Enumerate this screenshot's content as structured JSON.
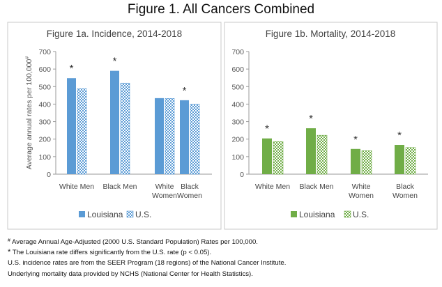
{
  "figure_title": "Figure 1.  All Cancers Combined",
  "chart_data": [
    {
      "type": "bar",
      "title": "Figure 1a. Incidence, 2014-2018",
      "ylabel": "Average annual rates per 100,000#",
      "ylim": [
        0,
        700
      ],
      "yticks": [
        0,
        100,
        200,
        300,
        400,
        500,
        600,
        700
      ],
      "categories": [
        "White Men",
        "Black Men",
        "White Women",
        "Black Women"
      ],
      "category_lines": [
        [
          "White Men"
        ],
        [
          "Black Men"
        ],
        [
          "White",
          "Women"
        ],
        [
          "Black",
          "Women"
        ]
      ],
      "series": [
        {
          "name": "Louisiana",
          "values": [
            548,
            590,
            434,
            422
          ],
          "color": "#5b9bd5",
          "pattern": "solid"
        },
        {
          "name": "U.S.",
          "values": [
            488,
            520,
            432,
            400
          ],
          "color": "#5b9bd5",
          "pattern": "checker"
        }
      ],
      "significant": [
        true,
        true,
        false,
        true
      ],
      "significance_marker": "*",
      "grid": false,
      "legend": "bottom"
    },
    {
      "type": "bar",
      "title": "Figure 1b. Mortality, 2014-2018",
      "ylabel": "",
      "ylim": [
        0,
        700
      ],
      "yticks": [
        0,
        100,
        200,
        300,
        400,
        500,
        600,
        700
      ],
      "categories": [
        "White Men",
        "Black Men",
        "White Women",
        "Black Women"
      ],
      "category_lines": [
        [
          "White Men"
        ],
        [
          "Black Men"
        ],
        [
          "White",
          "Women"
        ],
        [
          "Black",
          "Women"
        ]
      ],
      "series": [
        {
          "name": "Louisiana",
          "values": [
            204,
            262,
            144,
            167
          ],
          "color": "#70ad47",
          "pattern": "solid"
        },
        {
          "name": "U.S.",
          "values": [
            186,
            222,
            134,
            152
          ],
          "color": "#70ad47",
          "pattern": "checker"
        }
      ],
      "significant": [
        true,
        true,
        true,
        true
      ],
      "significance_marker": "*",
      "grid": false,
      "legend": "bottom"
    }
  ],
  "footnotes": {
    "note1_symbol": "#",
    "note1_text": " Average Annual Age-Adjusted (2000 U.S. Standard Population) Rates per 100,000.",
    "note2_symbol": "*",
    "note2_text": " The Louisiana rate differs significantly from the U.S. rate (p < 0.05).",
    "note3_text": "U.S. incidence rates are from the SEER Program (18 regions) of the National Cancer Institute.",
    "note4_text": "Underlying mortality data provided by NCHS (National Center for Health Statistics)."
  }
}
